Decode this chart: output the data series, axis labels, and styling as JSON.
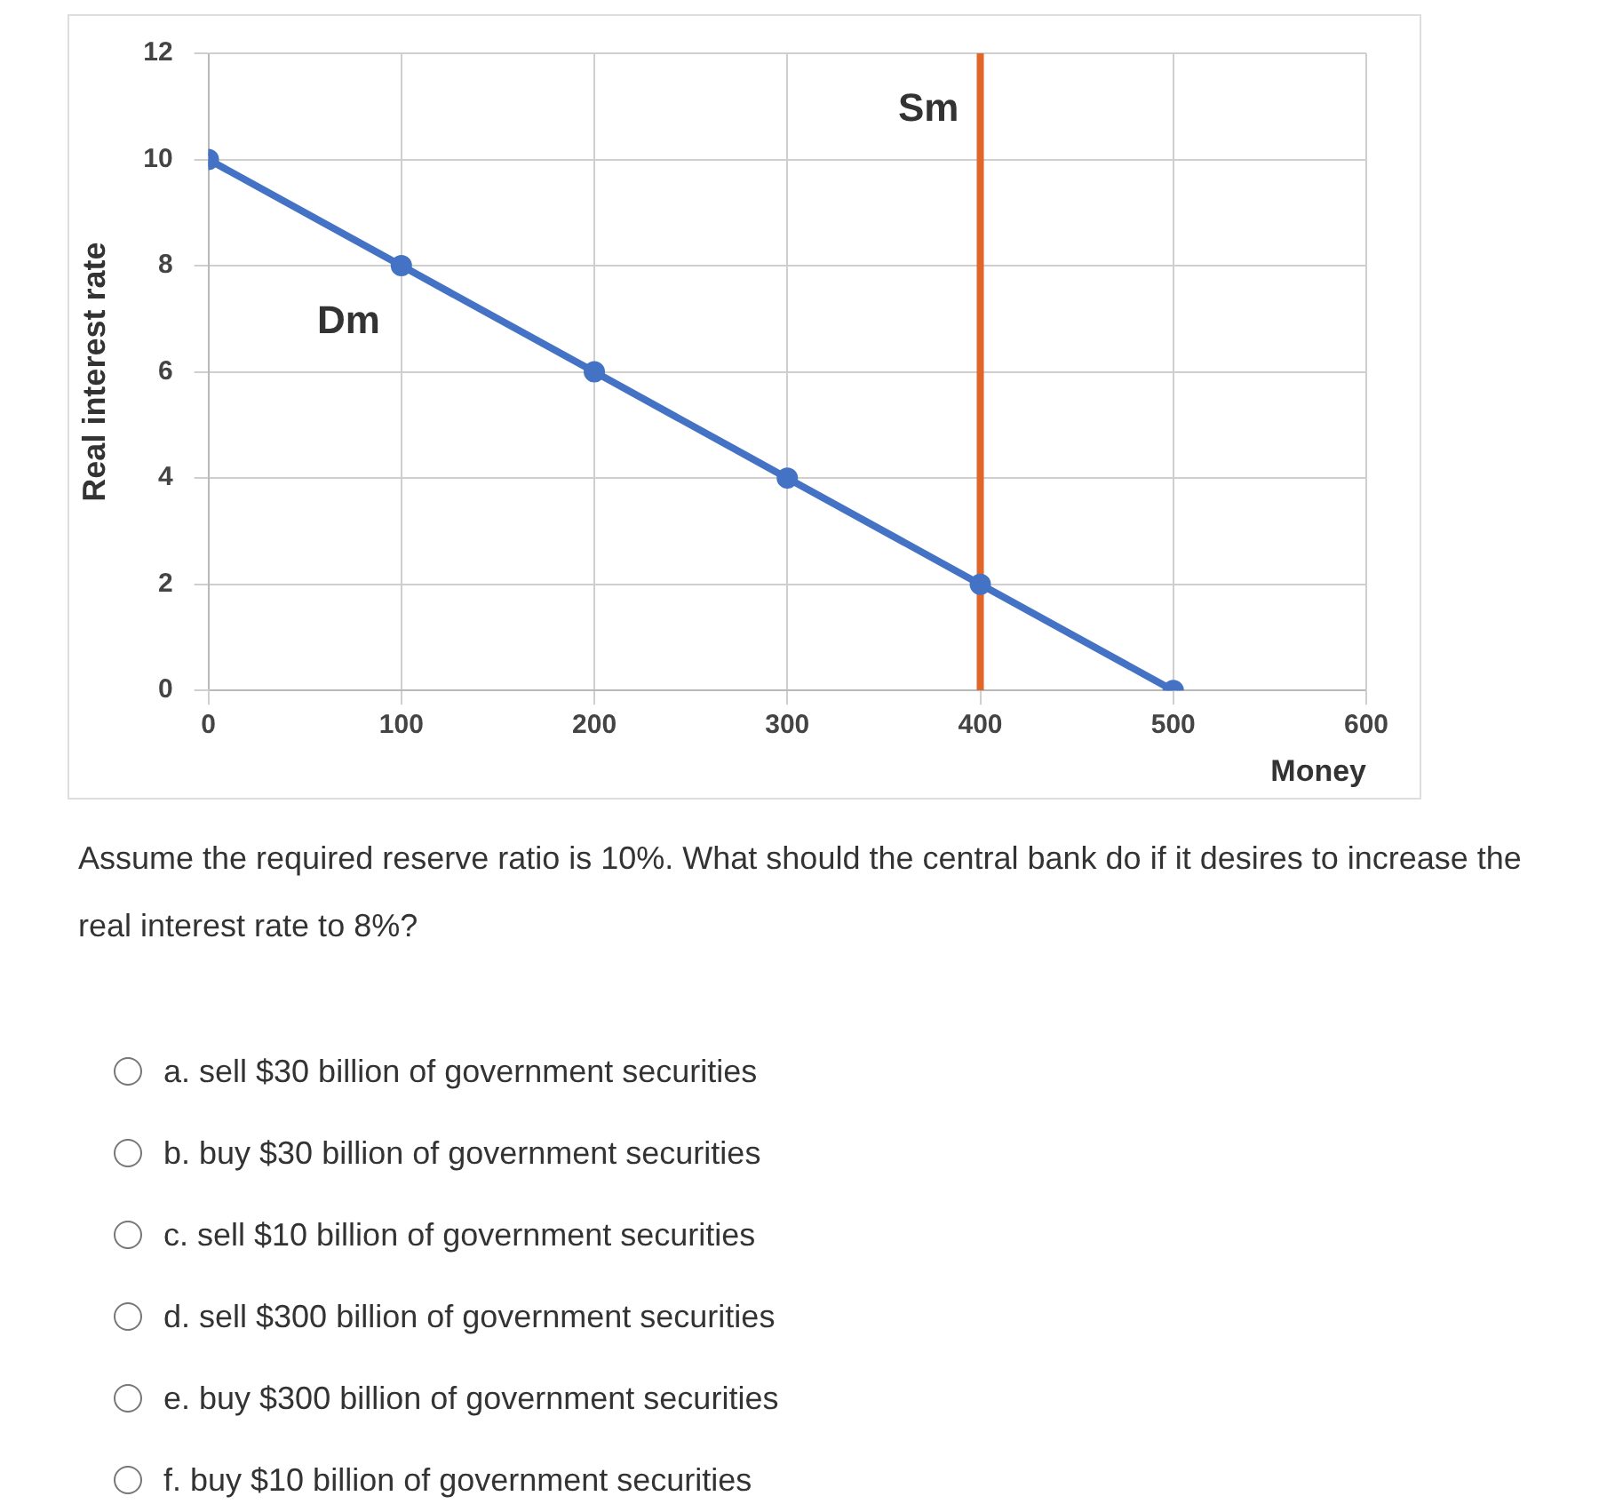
{
  "chart_data": {
    "type": "line",
    "xlabel": "Money",
    "ylabel": "Real interest rate",
    "xlim": [
      0,
      600
    ],
    "xticks": [
      0,
      100,
      200,
      300,
      400,
      500,
      600
    ],
    "ylim": [
      0,
      12
    ],
    "yticks": [
      0,
      2,
      4,
      6,
      8,
      10,
      12
    ],
    "grid": true,
    "legend": false,
    "series": [
      {
        "name": "Dm",
        "color": "#4472c4",
        "marker": "circle",
        "x": [
          0,
          100,
          200,
          300,
          400,
          500
        ],
        "values": [
          10,
          8,
          6,
          4,
          2,
          0
        ]
      },
      {
        "name": "Sm",
        "color": "#e0662a",
        "marker": "none",
        "x": [
          400,
          400
        ],
        "values": [
          0,
          12
        ]
      }
    ],
    "annotations": [
      "Assume the required reserve ratio is 10%. What should the central bank do if it desires to increase the real interest rate to 8%?",
      "a. sell $30 billion of government securities",
      "b. buy $30 billion of government securities",
      "c. sell $10 billion of government securities",
      "d. sell $300 billion of government securities",
      "e. buy $300 billion of government securities",
      "f. buy $10 billion of government securities"
    ]
  }
}
